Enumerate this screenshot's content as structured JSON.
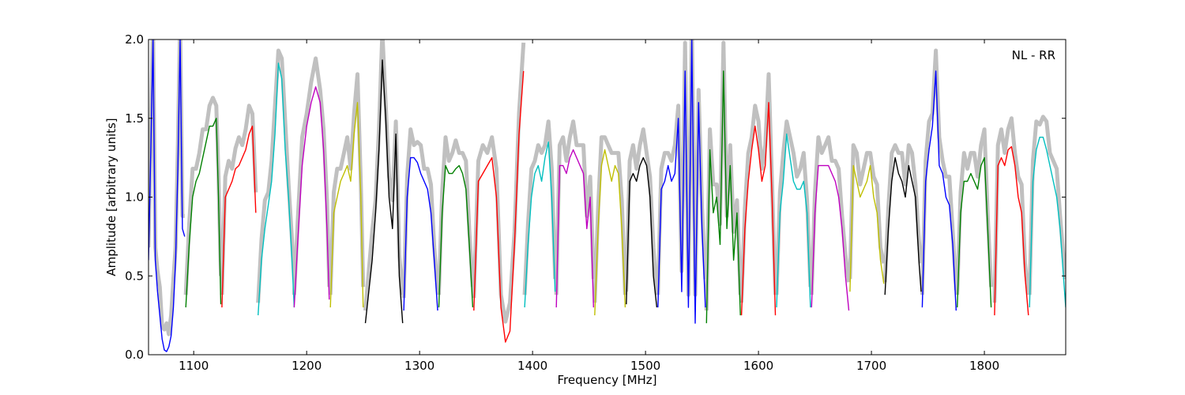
{
  "chart_data": {
    "type": "line",
    "title": "",
    "xlabel": "Frequency [MHz]",
    "ylabel": "Amplitude [arbitrary units]",
    "xlim": [
      1060,
      1872
    ],
    "ylim": [
      0.0,
      2.0
    ],
    "xticks": [
      "1100",
      "1200",
      "1300",
      "1400",
      "1500",
      "1600",
      "1700",
      "1800"
    ],
    "yticks": [
      "0.0",
      "0.5",
      "1.0",
      "1.5",
      "2.0"
    ],
    "annotation": "NL - RR",
    "grid": false,
    "background_color": "#c0c0c0",
    "series": [
      {
        "color": "#0000ff",
        "x": [
          1060,
          1062,
          1064,
          1066,
          1068,
          1070,
          1072,
          1074,
          1076,
          1078,
          1080,
          1082,
          1084,
          1086,
          1088,
          1090,
          1092
        ],
        "y": [
          0.6,
          1.3,
          2.0,
          0.6,
          0.4,
          0.25,
          0.1,
          0.03,
          0.02,
          0.05,
          0.12,
          0.3,
          0.6,
          1.2,
          2.0,
          0.8,
          0.75
        ]
      },
      {
        "color": "#008000",
        "x": [
          1093,
          1096,
          1099,
          1102,
          1105,
          1108,
          1111,
          1114,
          1117,
          1120,
          1122,
          1124
        ],
        "y": [
          0.3,
          0.7,
          1.0,
          1.1,
          1.15,
          1.25,
          1.35,
          1.45,
          1.45,
          1.5,
          1.0,
          0.32
        ]
      },
      {
        "color": "#ff0000",
        "x": [
          1125,
          1128,
          1131,
          1134,
          1137,
          1140,
          1143,
          1146,
          1149,
          1152,
          1155
        ],
        "y": [
          0.3,
          1.0,
          1.05,
          1.1,
          1.18,
          1.2,
          1.25,
          1.3,
          1.4,
          1.45,
          0.9
        ]
      },
      {
        "color": "#00bfbf",
        "x": [
          1157,
          1160,
          1163,
          1166,
          1169,
          1172,
          1175,
          1178,
          1181,
          1184,
          1187,
          1189
        ],
        "y": [
          0.25,
          0.6,
          0.8,
          0.95,
          1.1,
          1.4,
          1.85,
          1.75,
          1.3,
          1.0,
          0.6,
          0.3
        ]
      },
      {
        "color": "#bf00bf",
        "x": [
          1189,
          1192,
          1196,
          1200,
          1204,
          1208,
          1212,
          1215,
          1218,
          1220
        ],
        "y": [
          0.3,
          0.7,
          1.2,
          1.45,
          1.6,
          1.7,
          1.6,
          1.3,
          0.8,
          0.35
        ]
      },
      {
        "color": "#bfbf00",
        "x": [
          1221,
          1224,
          1227,
          1230,
          1233,
          1236,
          1239,
          1242,
          1245,
          1248,
          1250
        ],
        "y": [
          0.3,
          0.9,
          1.0,
          1.1,
          1.15,
          1.2,
          1.1,
          1.4,
          1.6,
          1.0,
          0.3
        ]
      },
      {
        "color": "#000000",
        "x": [
          1252,
          1255,
          1258,
          1261,
          1264,
          1267,
          1270,
          1273,
          1276,
          1279,
          1282,
          1285
        ],
        "y": [
          0.2,
          0.4,
          0.6,
          0.9,
          1.3,
          1.87,
          1.5,
          1.0,
          0.8,
          1.4,
          0.5,
          0.2
        ]
      },
      {
        "color": "#0000ff",
        "x": [
          1286,
          1289,
          1292,
          1295,
          1298,
          1301,
          1304,
          1307,
          1310,
          1313,
          1316
        ],
        "y": [
          0.28,
          1.0,
          1.25,
          1.25,
          1.22,
          1.15,
          1.1,
          1.05,
          0.9,
          0.6,
          0.28
        ]
      },
      {
        "color": "#008000",
        "x": [
          1317,
          1320,
          1323,
          1326,
          1329,
          1332,
          1335,
          1338,
          1341,
          1344,
          1347
        ],
        "y": [
          0.3,
          0.9,
          1.2,
          1.15,
          1.15,
          1.18,
          1.2,
          1.15,
          1.05,
          0.7,
          0.3
        ]
      },
      {
        "color": "#ff0000",
        "x": [
          1348,
          1352,
          1356,
          1360,
          1364,
          1368,
          1372,
          1376,
          1380,
          1384,
          1388,
          1392
        ],
        "y": [
          0.28,
          1.1,
          1.15,
          1.2,
          1.25,
          1.0,
          0.3,
          0.08,
          0.15,
          0.7,
          1.4,
          1.8
        ]
      },
      {
        "color": "#00bfbf",
        "x": [
          1393,
          1396,
          1399,
          1402,
          1405,
          1408,
          1411,
          1414,
          1417,
          1420
        ],
        "y": [
          0.3,
          0.7,
          1.0,
          1.15,
          1.2,
          1.1,
          1.25,
          1.35,
          1.0,
          0.4
        ]
      },
      {
        "color": "#bf00bf",
        "x": [
          1421,
          1424,
          1427,
          1430,
          1433,
          1436,
          1439,
          1442,
          1445,
          1448,
          1451,
          1454
        ],
        "y": [
          0.3,
          1.2,
          1.2,
          1.15,
          1.25,
          1.3,
          1.25,
          1.2,
          1.15,
          0.8,
          1.0,
          0.3
        ]
      },
      {
        "color": "#bfbf00",
        "x": [
          1455,
          1458,
          1461,
          1464,
          1467,
          1470,
          1473,
          1476,
          1479,
          1482
        ],
        "y": [
          0.25,
          0.8,
          1.2,
          1.3,
          1.2,
          1.1,
          1.2,
          1.15,
          0.8,
          0.3
        ]
      },
      {
        "color": "#000000",
        "x": [
          1483,
          1486,
          1489,
          1492,
          1495,
          1498,
          1501,
          1504,
          1507,
          1510
        ],
        "y": [
          0.32,
          1.1,
          1.15,
          1.1,
          1.2,
          1.25,
          1.2,
          1.0,
          0.5,
          0.3
        ]
      },
      {
        "color": "#0000ff",
        "x": [
          1511,
          1514,
          1517,
          1520,
          1523,
          1526,
          1529,
          1532,
          1535,
          1538,
          1541,
          1544,
          1547,
          1550,
          1553
        ],
        "y": [
          0.3,
          1.05,
          1.1,
          1.2,
          1.1,
          1.15,
          1.5,
          0.4,
          1.8,
          0.3,
          2.0,
          0.2,
          1.6,
          0.8,
          0.3
        ]
      },
      {
        "color": "#008000",
        "x": [
          1554,
          1557,
          1560,
          1563,
          1566,
          1569,
          1572,
          1575,
          1578,
          1581,
          1584
        ],
        "y": [
          0.2,
          1.3,
          0.9,
          1.0,
          0.7,
          1.8,
          0.8,
          1.2,
          0.6,
          0.9,
          0.25
        ]
      },
      {
        "color": "#ff0000",
        "x": [
          1585,
          1588,
          1591,
          1594,
          1597,
          1600,
          1603,
          1606,
          1609,
          1612,
          1615
        ],
        "y": [
          0.25,
          0.8,
          1.1,
          1.3,
          1.45,
          1.3,
          1.1,
          1.2,
          1.6,
          1.0,
          0.25
        ]
      },
      {
        "color": "#00bfbf",
        "x": [
          1616,
          1619,
          1622,
          1625,
          1628,
          1631,
          1634,
          1637,
          1640,
          1643,
          1646
        ],
        "y": [
          0.3,
          0.9,
          1.1,
          1.4,
          1.25,
          1.1,
          1.05,
          1.05,
          1.1,
          0.9,
          0.3
        ]
      },
      {
        "color": "#bf00bf",
        "x": [
          1647,
          1650,
          1653,
          1656,
          1659,
          1662,
          1665,
          1668,
          1671,
          1674,
          1677,
          1680
        ],
        "y": [
          0.3,
          0.9,
          1.2,
          1.2,
          1.2,
          1.2,
          1.15,
          1.1,
          1.0,
          0.8,
          0.5,
          0.28
        ]
      },
      {
        "color": "#bfbf00",
        "x": [
          1681,
          1684,
          1687,
          1690,
          1693,
          1696,
          1699,
          1702,
          1705,
          1708,
          1711
        ],
        "y": [
          0.4,
          1.2,
          1.1,
          1.0,
          1.05,
          1.1,
          1.2,
          1.0,
          0.9,
          0.6,
          0.45
        ]
      },
      {
        "color": "#000000",
        "x": [
          1712,
          1715,
          1718,
          1721,
          1724,
          1727,
          1730,
          1733,
          1736,
          1739,
          1742,
          1744
        ],
        "y": [
          0.38,
          0.8,
          1.1,
          1.25,
          1.15,
          1.1,
          1.0,
          1.2,
          1.1,
          1.0,
          0.6,
          0.4
        ]
      },
      {
        "color": "#0000ff",
        "x": [
          1745,
          1748,
          1751,
          1754,
          1757,
          1760,
          1763,
          1766,
          1769,
          1772,
          1775
        ],
        "y": [
          0.3,
          1.1,
          1.3,
          1.45,
          1.8,
          1.2,
          1.15,
          1.0,
          0.95,
          0.7,
          0.28
        ]
      },
      {
        "color": "#008000",
        "x": [
          1776,
          1779,
          1782,
          1785,
          1788,
          1791,
          1794,
          1797,
          1800,
          1803,
          1806
        ],
        "y": [
          0.3,
          0.9,
          1.1,
          1.1,
          1.15,
          1.1,
          1.05,
          1.2,
          1.25,
          0.8,
          0.3
        ]
      },
      {
        "color": "#ff0000",
        "x": [
          1809,
          1812,
          1815,
          1818,
          1821,
          1824,
          1827,
          1830,
          1833,
          1836,
          1839
        ],
        "y": [
          0.25,
          1.2,
          1.25,
          1.2,
          1.3,
          1.32,
          1.2,
          1.0,
          0.9,
          0.5,
          0.25
        ]
      },
      {
        "color": "#00bfbf",
        "x": [
          1840,
          1843,
          1846,
          1849,
          1852,
          1855,
          1858,
          1861,
          1864,
          1867,
          1870,
          1872
        ],
        "y": [
          0.3,
          1.1,
          1.3,
          1.38,
          1.38,
          1.3,
          1.2,
          1.1,
          1.0,
          0.8,
          0.5,
          0.3
        ]
      }
    ]
  }
}
